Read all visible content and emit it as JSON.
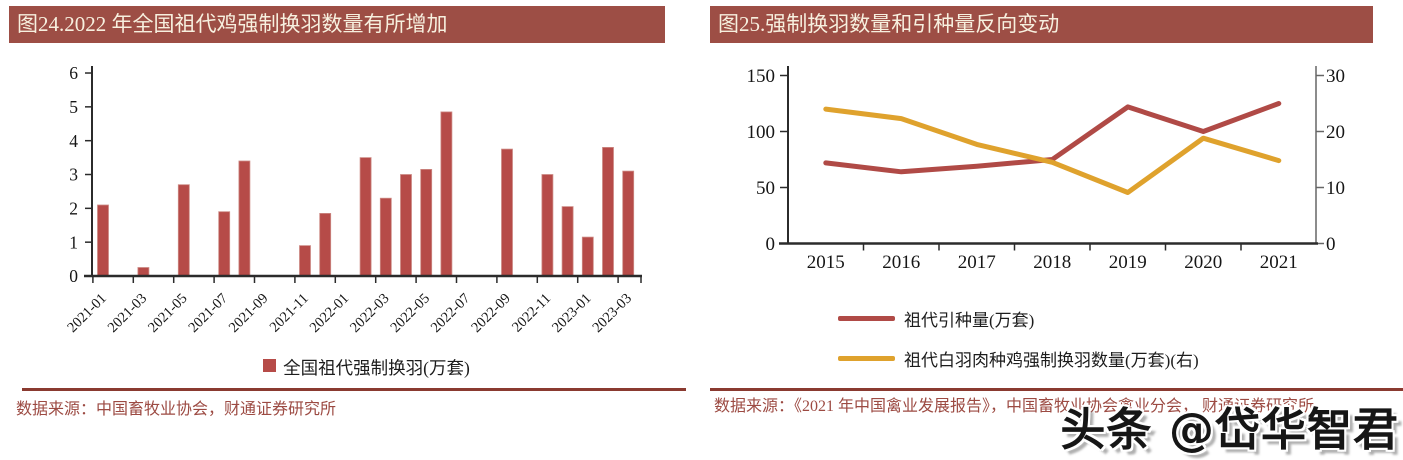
{
  "panels": {
    "left": {
      "title": "图24.2022 年全国祖代鸡强制换羽数量有所增加",
      "source": "数据来源：中国畜牧业协会，财通证券研究所"
    },
    "right": {
      "title": "图25.强制换羽数量和引种量反向变动",
      "source": "数据来源：《2021 年中国禽业发展报告》，中国畜牧业协会禽业分会， 财通证券研究所"
    }
  },
  "watermark": {
    "text": "头条 @岱华智君"
  },
  "colors": {
    "title_bar": "#9d4e45",
    "title_text": "#f7f0df",
    "bar": "#b64b48",
    "red_line": "#b04a46",
    "yellow_line": "#dfa22d",
    "source_text": "#9c4a42",
    "divider": "#8a3a30",
    "axis": "#2b2b2b"
  },
  "chart_data": [
    {
      "type": "bar",
      "title": "图24.2022 年全国祖代鸡强制换羽数量有所增加",
      "legend": [
        "全国祖代强制换羽(万套)"
      ],
      "categories": [
        "2021-01",
        "2021-02",
        "2021-03",
        "2021-04",
        "2021-05",
        "2021-06",
        "2021-07",
        "2021-08",
        "2021-09",
        "2021-10",
        "2021-11",
        "2021-12",
        "2022-01",
        "2022-02",
        "2022-03",
        "2022-04",
        "2022-05",
        "2022-06",
        "2022-07",
        "2022-08",
        "2022-09",
        "2022-10",
        "2022-11",
        "2022-12",
        "2023-01",
        "2023-02",
        "2023-03"
      ],
      "values": [
        2.1,
        0,
        0.25,
        0,
        2.7,
        0,
        1.9,
        3.4,
        0,
        0,
        0.9,
        1.85,
        0,
        3.5,
        2.3,
        3,
        3.15,
        4.85,
        0,
        0,
        3.75,
        0,
        3,
        2.05,
        1.15,
        3.8,
        3.1
      ],
      "x_tick_label_interval": 2,
      "xlabel": "",
      "ylabel": "",
      "ylim": [
        0,
        6
      ],
      "yticks": [
        0,
        1,
        2,
        3,
        4,
        5,
        6
      ],
      "grid": false,
      "legend_position": "bottom",
      "bar_color": "#b64b48"
    },
    {
      "type": "line",
      "title": "图25.强制换羽数量和引种量反向变动",
      "x": [
        "2015",
        "2016",
        "2017",
        "2018",
        "2019",
        "2020",
        "2021"
      ],
      "series": [
        {
          "name": "祖代引种量(万套)",
          "axis": "left",
          "color": "#b04a46",
          "values": [
            72,
            64,
            69,
            75,
            122,
            100,
            125
          ]
        },
        {
          "name": "祖代白羽肉种鸡强制换羽数量(万套)(右)",
          "axis": "right",
          "color": "#dfa22d",
          "values": [
            24,
            22.3,
            17.7,
            14.5,
            9.1,
            18.8,
            14.8
          ]
        }
      ],
      "left_ylim": [
        0,
        150
      ],
      "left_yticks": [
        0,
        50,
        100,
        150
      ],
      "right_ylim": [
        0,
        30
      ],
      "right_yticks": [
        0,
        10,
        20,
        30
      ],
      "grid": false,
      "legend_position": "bottom"
    }
  ]
}
